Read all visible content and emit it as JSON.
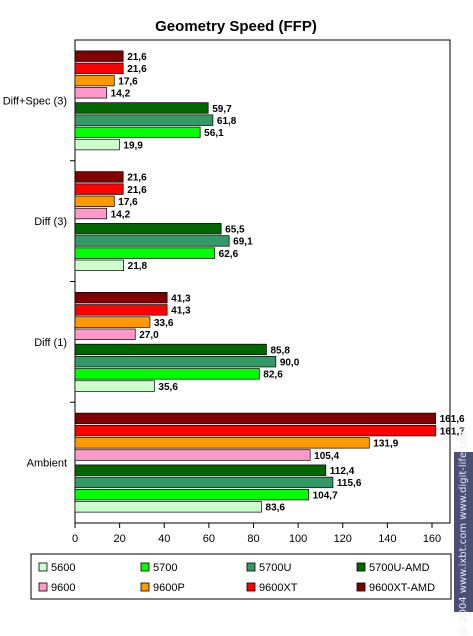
{
  "watermark": "© 2004 www.ixbt.com   www.digit-life.com",
  "chart_data": {
    "type": "bar",
    "orientation": "horizontal",
    "title": "Geometry Speed (FFP)",
    "categories": [
      "Diff+Spec (3)",
      "Diff (3)",
      "Diff (1)",
      "Ambient"
    ],
    "xlim": [
      0,
      160
    ],
    "xticks": [
      "0",
      "20",
      "40",
      "60",
      "80",
      "100",
      "120",
      "140",
      "160"
    ],
    "grid": false,
    "legend_position": "bottom",
    "series": [
      {
        "name": "9600XT-AMD",
        "color": "#800000",
        "values": [
          21.6,
          21.6,
          41.3,
          161.6
        ],
        "labels": [
          "21,6",
          "21,6",
          "41,3",
          "161,6"
        ]
      },
      {
        "name": "9600XT",
        "color": "#ff0000",
        "values": [
          21.6,
          21.6,
          41.3,
          161.7
        ],
        "labels": [
          "21,6",
          "21,6",
          "41,3",
          "161,7"
        ]
      },
      {
        "name": "9600P",
        "color": "#ff9900",
        "values": [
          17.6,
          17.6,
          33.6,
          131.9
        ],
        "labels": [
          "17,6",
          "17,6",
          "33,6",
          "131,9"
        ]
      },
      {
        "name": "9600",
        "color": "#ff99cc",
        "values": [
          14.2,
          14.2,
          27.0,
          105.4
        ],
        "labels": [
          "14,2",
          "14,2",
          "27,0",
          "105,4"
        ]
      },
      {
        "name": "5700U-AMD",
        "color": "#006600",
        "values": [
          59.7,
          65.5,
          85.8,
          112.4
        ],
        "labels": [
          "59,7",
          "65,5",
          "85,8",
          "112,4"
        ]
      },
      {
        "name": "5700U",
        "color": "#339966",
        "values": [
          61.8,
          69.1,
          90.0,
          115.6
        ],
        "labels": [
          "61,8",
          "69,1",
          "90,0",
          "115,6"
        ]
      },
      {
        "name": "5700",
        "color": "#00ff00",
        "values": [
          56.1,
          62.6,
          82.6,
          104.7
        ],
        "labels": [
          "56,1",
          "62,6",
          "82,6",
          "104,7"
        ]
      },
      {
        "name": "5600",
        "color": "#ccffcc",
        "values": [
          19.9,
          21.8,
          35.6,
          83.6
        ],
        "labels": [
          "19,9",
          "21,8",
          "35,6",
          "83,6"
        ]
      }
    ],
    "legend": [
      {
        "name": "5600",
        "color": "#ccffcc"
      },
      {
        "name": "5700",
        "color": "#00ff00"
      },
      {
        "name": "5700U",
        "color": "#339966"
      },
      {
        "name": "5700U-AMD",
        "color": "#006600"
      },
      {
        "name": "9600",
        "color": "#ff99cc"
      },
      {
        "name": "9600P",
        "color": "#ff9900"
      },
      {
        "name": "9600XT",
        "color": "#ff0000"
      },
      {
        "name": "9600XT-AMD",
        "color": "#800000"
      }
    ]
  }
}
